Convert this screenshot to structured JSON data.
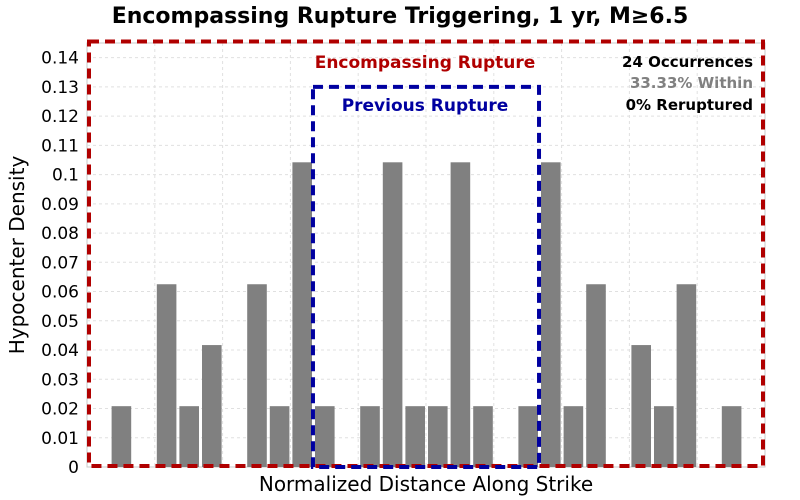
{
  "chart_data": {
    "type": "bar",
    "title": "Encompassing Rupture Triggering, 1 yr, M≥6.5",
    "xlabel": "Normalized Distance Along Strike",
    "ylabel": "Hypocenter Density",
    "ylim": [
      0,
      0.145
    ],
    "yticks": [
      0,
      0.01,
      0.02,
      0.03,
      0.04,
      0.05,
      0.06,
      0.07,
      0.08,
      0.09,
      0.1,
      0.11,
      0.12,
      0.13,
      0.14
    ],
    "ytick_labels": [
      "0",
      "0.01",
      "0.02",
      "0.03",
      "0.04",
      "0.05",
      "0.06",
      "0.07",
      "0.08",
      "0.09",
      "0.1",
      "0.11",
      "0.12",
      "0.13",
      "0.14"
    ],
    "grid": true,
    "bin_count": 30,
    "values": [
      0.0,
      0.0208,
      0.0,
      0.0625,
      0.0208,
      0.0417,
      0.0,
      0.0625,
      0.0208,
      0.1042,
      0.0208,
      0.0,
      0.0208,
      0.1042,
      0.0208,
      0.0208,
      0.1042,
      0.0208,
      0.0,
      0.0208,
      0.1042,
      0.0208,
      0.0625,
      0.0,
      0.0417,
      0.0208,
      0.0625,
      0.0,
      0.0208,
      0.0
    ],
    "bar_color": "#808080",
    "encompassing_rupture": {
      "label": "Encompassing Rupture",
      "color": "#b00000",
      "x_range": [
        0,
        1
      ],
      "top": 0.1455
    },
    "previous_rupture": {
      "label": "Previous Rupture",
      "color": "#0000a0",
      "x_range": [
        0.3333,
        0.6667
      ],
      "top": 0.13
    },
    "stats": {
      "occurrences": "24 Occurrences",
      "within": "33.33% Within",
      "reruptured": "0% Reruptured"
    },
    "stats_colors": {
      "occurrences": "#000000",
      "within": "#808080",
      "reruptured": "#000000"
    }
  }
}
